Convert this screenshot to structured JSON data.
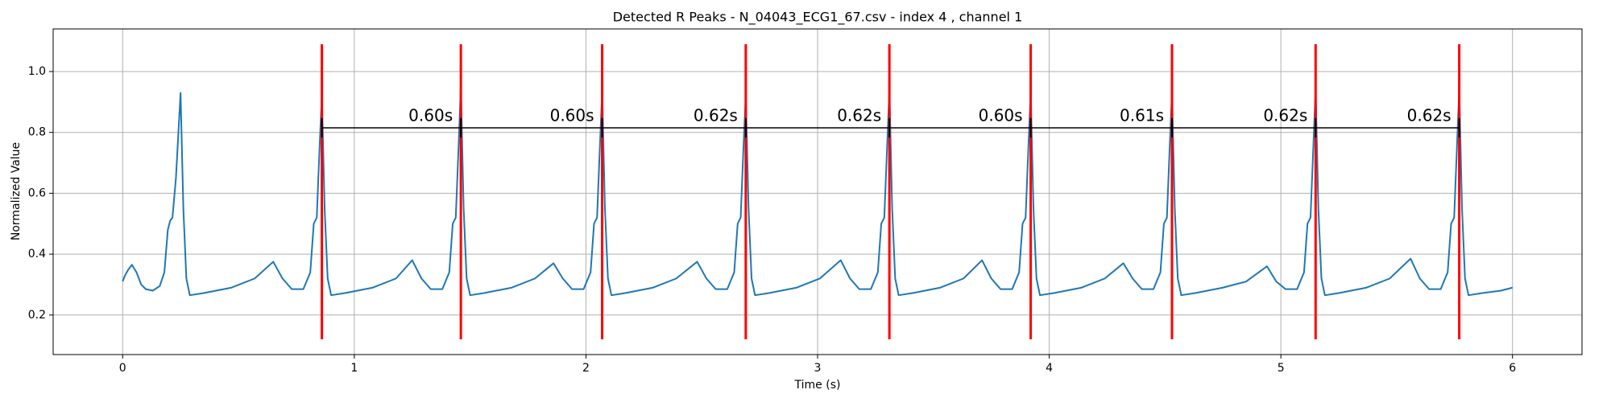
{
  "chart_data": {
    "type": "line",
    "title": "Detected R Peaks - N_04043_ECG1_67.csv - index 4 , channel 1",
    "x_label": "Time (s)",
    "y_label": "Normalized Value",
    "xlim": [
      -0.3,
      6.3
    ],
    "ylim": [
      0.07,
      1.14
    ],
    "xticks": [
      0,
      1,
      2,
      3,
      4,
      5,
      6
    ],
    "yticks": [
      0.2,
      0.4,
      0.6,
      0.8,
      {
        "value": 1,
        "label": "1.0"
      }
    ],
    "grid": true,
    "x": [
      0,
      0.01,
      0.025,
      0.04,
      0.06,
      0.08,
      0.1,
      0.13,
      0.16,
      0.18,
      0.195,
      0.205,
      0.215,
      0.23,
      0.25,
      0.262,
      0.275,
      0.29,
      0.35,
      0.47,
      0.57,
      0.65,
      0.69,
      0.73,
      0.78,
      0.81,
      0.825,
      0.838,
      0.85,
      0.86,
      0.872,
      0.885,
      0.9,
      0.96,
      1.08,
      1.18,
      1.25,
      1.29,
      1.33,
      1.38,
      1.41,
      1.425,
      1.438,
      1.45,
      1.46,
      1.472,
      1.485,
      1.5,
      1.56,
      1.68,
      1.78,
      1.86,
      1.9,
      1.94,
      1.99,
      2.02,
      2.035,
      2.048,
      2.06,
      2.07,
      2.082,
      2.095,
      2.11,
      2.17,
      2.29,
      2.39,
      2.48,
      2.52,
      2.56,
      2.61,
      2.64,
      2.655,
      2.668,
      2.68,
      2.69,
      2.702,
      2.715,
      2.73,
      2.79,
      2.91,
      3.01,
      3.1,
      3.14,
      3.18,
      3.23,
      3.26,
      3.275,
      3.288,
      3.3,
      3.31,
      3.322,
      3.335,
      3.35,
      3.41,
      3.53,
      3.63,
      3.71,
      3.75,
      3.79,
      3.84,
      3.87,
      3.885,
      3.898,
      3.91,
      3.92,
      3.932,
      3.945,
      3.96,
      4.02,
      4.14,
      4.24,
      4.32,
      4.36,
      4.4,
      4.45,
      4.48,
      4.495,
      4.508,
      4.52,
      4.53,
      4.542,
      4.555,
      4.57,
      4.63,
      4.75,
      4.85,
      4.94,
      4.98,
      5.02,
      5.07,
      5.1,
      5.115,
      5.128,
      5.14,
      5.15,
      5.162,
      5.175,
      5.19,
      5.25,
      5.37,
      5.47,
      5.56,
      5.6,
      5.64,
      5.69,
      5.72,
      5.735,
      5.748,
      5.76,
      5.77,
      5.782,
      5.795,
      5.81,
      5.87,
      5.95,
      6.0
    ],
    "series": [
      {
        "color": "#1f77b4",
        "values": [
          0.31,
          0.33,
          0.35,
          0.365,
          0.34,
          0.3,
          0.285,
          0.28,
          0.295,
          0.34,
          0.48,
          0.51,
          0.52,
          0.65,
          0.93,
          0.55,
          0.32,
          0.265,
          0.272,
          0.29,
          0.32,
          0.375,
          0.32,
          0.285,
          0.285,
          0.34,
          0.5,
          0.52,
          0.75,
          0.92,
          0.55,
          0.32,
          0.265,
          0.272,
          0.29,
          0.32,
          0.38,
          0.32,
          0.285,
          0.285,
          0.34,
          0.5,
          0.52,
          0.75,
          0.95,
          0.55,
          0.32,
          0.265,
          0.272,
          0.29,
          0.32,
          0.37,
          0.32,
          0.285,
          0.285,
          0.34,
          0.5,
          0.52,
          0.75,
          0.93,
          0.55,
          0.32,
          0.265,
          0.272,
          0.29,
          0.32,
          0.375,
          0.32,
          0.285,
          0.285,
          0.34,
          0.5,
          0.52,
          0.75,
          0.92,
          0.55,
          0.32,
          0.265,
          0.272,
          0.29,
          0.32,
          0.38,
          0.32,
          0.285,
          0.285,
          0.34,
          0.5,
          0.52,
          0.75,
          0.94,
          0.55,
          0.32,
          0.265,
          0.272,
          0.29,
          0.32,
          0.38,
          0.32,
          0.285,
          0.285,
          0.34,
          0.5,
          0.52,
          0.75,
          0.93,
          0.55,
          0.32,
          0.265,
          0.272,
          0.29,
          0.32,
          0.37,
          0.32,
          0.285,
          0.285,
          0.34,
          0.5,
          0.52,
          0.75,
          0.93,
          0.55,
          0.32,
          0.265,
          0.272,
          0.29,
          0.31,
          0.36,
          0.31,
          0.285,
          0.285,
          0.34,
          0.5,
          0.52,
          0.75,
          0.94,
          0.55,
          0.32,
          0.265,
          0.272,
          0.29,
          0.32,
          0.385,
          0.32,
          0.285,
          0.285,
          0.34,
          0.5,
          0.52,
          0.75,
          0.94,
          0.55,
          0.32,
          0.265,
          0.272,
          0.28,
          0.29
        ]
      }
    ],
    "r_peaks": {
      "color": "#ff0000",
      "x": [
        0.86,
        1.46,
        2.07,
        2.69,
        3.31,
        3.92,
        4.53,
        5.15,
        5.77
      ]
    },
    "intervals": {
      "color": "#000000",
      "values": [
        0.6,
        0.6,
        0.62,
        0.62,
        0.6,
        0.61,
        0.62,
        0.62
      ],
      "value_labels": [
        "0.60s",
        "0.60s",
        "0.62s",
        "0.62s",
        "0.60s",
        "0.61s",
        "0.62s",
        "0.62s"
      ]
    }
  }
}
